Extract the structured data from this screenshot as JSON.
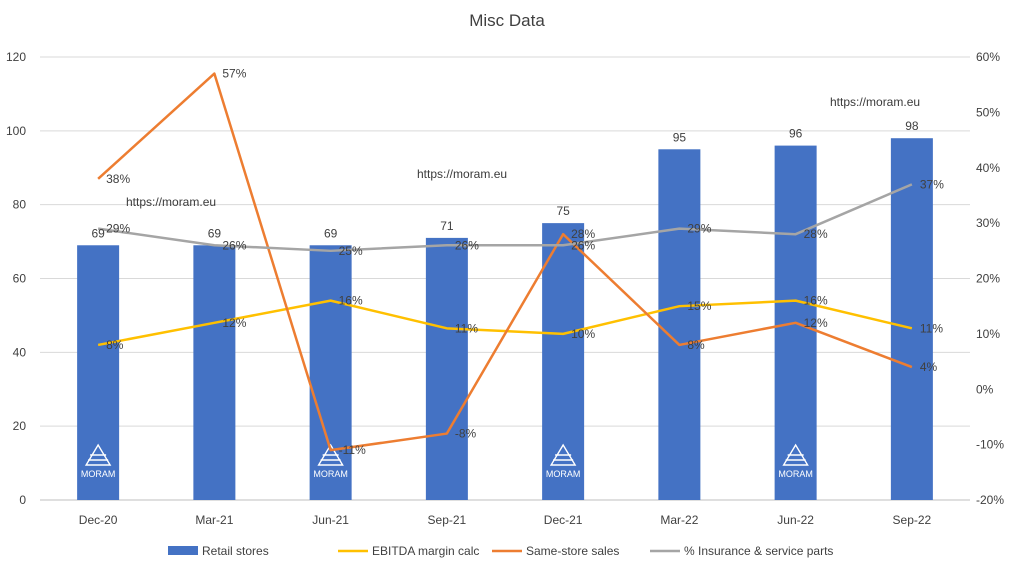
{
  "chart_data": {
    "type": "bar",
    "title": "Misc Data",
    "categories": [
      "Dec-20",
      "Mar-21",
      "Jun-21",
      "Sep-21",
      "Dec-21",
      "Mar-22",
      "Jun-22",
      "Sep-22"
    ],
    "y_left": {
      "min": 0,
      "max": 120,
      "ticks": [
        "0",
        "20",
        "40",
        "60",
        "80",
        "100",
        "120"
      ]
    },
    "y_right": {
      "min": -20,
      "max": 60,
      "ticks": [
        "-20%",
        "-10%",
        "0%",
        "10%",
        "20%",
        "30%",
        "40%",
        "50%",
        "60%"
      ]
    },
    "series": [
      {
        "name": "Retail stores",
        "kind": "bar",
        "axis": "left",
        "color": "#4472c4",
        "values": [
          69,
          69,
          69,
          71,
          75,
          95,
          96,
          98
        ],
        "labels": [
          "69",
          "69",
          "69",
          "71",
          "75",
          "95",
          "96",
          "98"
        ]
      },
      {
        "name": "EBITDA margin calc",
        "kind": "line",
        "axis": "right",
        "color": "#ffc000",
        "values": [
          8,
          12,
          16,
          11,
          10,
          15,
          16,
          11
        ],
        "labels": [
          "8%",
          "12%",
          "16%",
          "11%",
          "10%",
          "15%",
          "16%",
          "11%"
        ]
      },
      {
        "name": "Same-store sales",
        "kind": "line",
        "axis": "right",
        "color": "#ed7d31",
        "values": [
          38,
          57,
          -11,
          -8,
          28,
          8,
          12,
          4
        ],
        "labels": [
          "38%",
          "57%",
          "-11%",
          "-8%",
          "28%",
          "8%",
          "12%",
          "4%"
        ]
      },
      {
        "name": "% Insurance & service parts",
        "kind": "line",
        "axis": "right",
        "color": "#a5a5a5",
        "values": [
          29,
          26,
          25,
          26,
          26,
          29,
          28,
          37
        ],
        "labels": [
          "29%",
          "26%",
          "25%",
          "26%",
          "26%",
          "29%",
          "28%",
          "37%"
        ]
      }
    ],
    "legend_position": "bottom",
    "grid": true
  },
  "watermarks": [
    "https://moram.eu",
    "https://moram.eu",
    "https://moram.eu"
  ],
  "logo_text": "MORAM"
}
